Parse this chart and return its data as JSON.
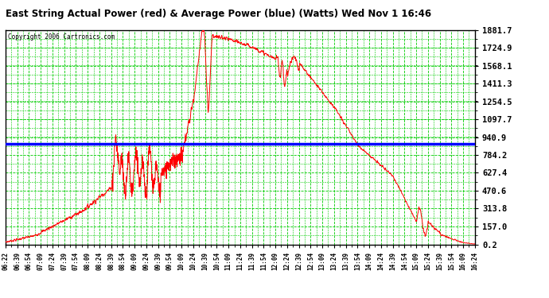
{
  "title": "East String Actual Power (red) & Average Power (blue) (Watts) Wed Nov 1 16:46",
  "copyright": "Copyright 2006 Cartronics.com",
  "background_color": "#ffffff",
  "plot_bg_color": "#ffffff",
  "grid_color": "#00cc00",
  "line_color_red": "#ff0000",
  "line_color_blue": "#0000ff",
  "average_power": 880.0,
  "yticks": [
    0.2,
    157.0,
    313.8,
    470.6,
    627.4,
    784.2,
    940.9,
    1097.7,
    1254.5,
    1411.3,
    1568.1,
    1724.9,
    1881.7
  ],
  "ymin": 0.2,
  "ymax": 1881.7,
  "xtick_labels": [
    "06:22",
    "06:39",
    "06:54",
    "07:09",
    "07:24",
    "07:39",
    "07:54",
    "08:09",
    "08:24",
    "08:39",
    "08:54",
    "09:09",
    "09:24",
    "09:39",
    "09:54",
    "10:09",
    "10:24",
    "10:39",
    "10:54",
    "11:09",
    "11:24",
    "11:39",
    "11:54",
    "12:09",
    "12:24",
    "12:39",
    "12:54",
    "13:09",
    "13:24",
    "13:39",
    "13:54",
    "14:09",
    "14:24",
    "14:39",
    "14:54",
    "15:09",
    "15:24",
    "15:39",
    "15:54",
    "16:09",
    "16:24"
  ]
}
